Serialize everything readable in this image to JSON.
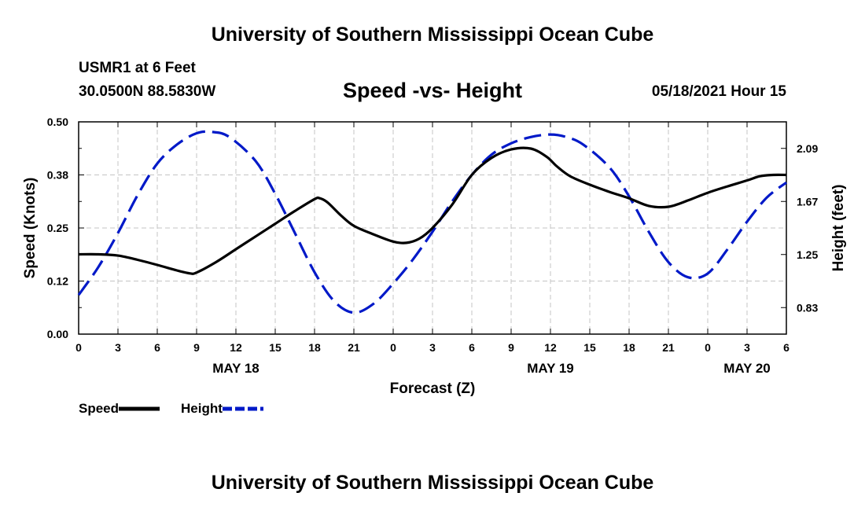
{
  "header": {
    "title": "University of Southern Mississippi Ocean Cube",
    "station": "USMR1 at 6 Feet",
    "coordinates": "30.0500N  88.5830W",
    "datetime": "05/18/2021 Hour 15"
  },
  "footer": {
    "title": "University of Southern Mississippi Ocean Cube"
  },
  "chart_data": {
    "type": "line",
    "title": "Speed -vs- Height",
    "xlabel": "Forecast (Z)",
    "ylabel_left": "Speed (Knots)",
    "ylabel_right": "Height (feet)",
    "x_unit": "hours from 2021-05-18 00Z",
    "xlim": [
      0,
      54
    ],
    "x_ticks": [
      0,
      3,
      6,
      9,
      12,
      15,
      18,
      21,
      24,
      27,
      30,
      33,
      36,
      39,
      42,
      45,
      48,
      51,
      54
    ],
    "x_tick_labels": [
      "0",
      "3",
      "6",
      "9",
      "12",
      "15",
      "18",
      "21",
      "0",
      "3",
      "6",
      "9",
      "12",
      "15",
      "18",
      "21",
      "0",
      "3",
      "6"
    ],
    "date_labels": [
      {
        "label": "MAY 18",
        "x": 12
      },
      {
        "label": "MAY 19",
        "x": 36
      },
      {
        "label": "MAY 20",
        "x": 51
      }
    ],
    "ylim_left": [
      0,
      0.5
    ],
    "y_ticks_left": [
      0,
      0.125,
      0.25,
      0.375,
      0.5
    ],
    "y_tick_labels_left": [
      "0.00",
      "0.12",
      "0.25",
      "0.38",
      "0.50"
    ],
    "ylim_right": [
      0.62,
      2.3
    ],
    "y_ticks_right": [
      0.83,
      1.25,
      1.67,
      2.09
    ],
    "y_tick_labels_right": [
      "0.83",
      "1.25",
      "1.67",
      "2.09"
    ],
    "grid": true,
    "series": [
      {
        "name": "Speed",
        "axis": "left",
        "color": "#000000",
        "dash": "solid",
        "x": [
          0,
          1.5,
          3,
          4.5,
          6,
          7.5,
          8.5,
          9,
          10.5,
          12,
          13.5,
          15,
          16.5,
          18,
          18.4,
          19,
          20,
          21,
          22.5,
          24,
          25,
          26,
          27,
          28.5,
          30,
          31.5,
          33,
          34.5,
          35.7,
          36.5,
          37.5,
          39,
          40.5,
          42,
          43.5,
          45,
          46.5,
          48,
          49.5,
          51,
          52,
          53,
          54
        ],
        "values": [
          0.188,
          0.188,
          0.185,
          0.175,
          0.163,
          0.15,
          0.143,
          0.145,
          0.17,
          0.2,
          0.23,
          0.26,
          0.29,
          0.318,
          0.32,
          0.31,
          0.28,
          0.255,
          0.235,
          0.218,
          0.215,
          0.225,
          0.25,
          0.305,
          0.375,
          0.415,
          0.435,
          0.437,
          0.418,
          0.395,
          0.372,
          0.352,
          0.335,
          0.32,
          0.302,
          0.3,
          0.315,
          0.333,
          0.348,
          0.362,
          0.372,
          0.375,
          0.375
        ]
      },
      {
        "name": "Height",
        "axis": "right",
        "color": "#0019c8",
        "dash": "dashed",
        "x": [
          0,
          1.5,
          3,
          4.5,
          6,
          7.5,
          9,
          10.2,
          11.5,
          13.5,
          15,
          16.5,
          18,
          19.5,
          21,
          22.5,
          24,
          25.5,
          27,
          28.5,
          30,
          31.5,
          33,
          34.5,
          36,
          37.2,
          38.5,
          40.5,
          42,
          43.5,
          45,
          46.5,
          48,
          49.5,
          51,
          52.5,
          54
        ],
        "values": [
          0.93,
          1.15,
          1.42,
          1.72,
          1.97,
          2.12,
          2.21,
          2.22,
          2.18,
          1.99,
          1.73,
          1.42,
          1.11,
          0.88,
          0.79,
          0.86,
          1.02,
          1.21,
          1.43,
          1.67,
          1.88,
          2.04,
          2.13,
          2.18,
          2.2,
          2.18,
          2.12,
          1.94,
          1.71,
          1.43,
          1.19,
          1.07,
          1.1,
          1.29,
          1.51,
          1.7,
          1.82
        ]
      }
    ],
    "legend": [
      {
        "name": "Speed",
        "color": "#000000",
        "dash": "solid"
      },
      {
        "name": "Height",
        "color": "#0019c8",
        "dash": "dashed"
      }
    ],
    "legend_position": "bottom-left"
  }
}
